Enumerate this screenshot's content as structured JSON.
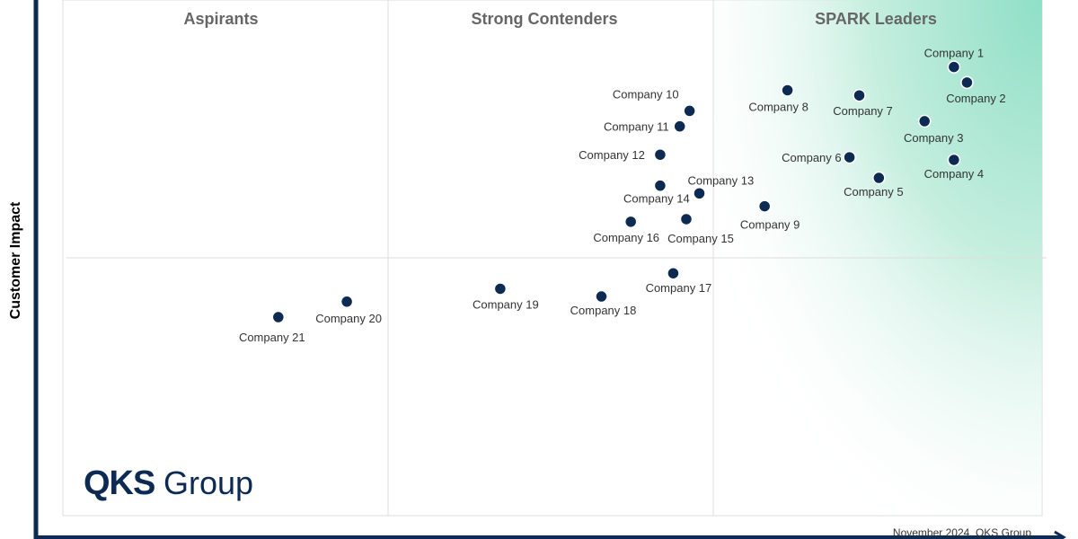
{
  "chart_data": {
    "type": "scatter",
    "ylabel": "Customer Impact",
    "xlabel": "",
    "xlim": [
      0,
      3
    ],
    "ylim": [
      0,
      2
    ],
    "quadrants": [
      "Aspirants",
      "Strong Contenders",
      "SPARK Leaders"
    ],
    "points": [
      {
        "label": "Company 1",
        "x": 2.73,
        "y": 1.74
      },
      {
        "label": "Company 2",
        "x": 2.77,
        "y": 1.68
      },
      {
        "label": "Company 3",
        "x": 2.64,
        "y": 1.53
      },
      {
        "label": "Company 4",
        "x": 2.73,
        "y": 1.38
      },
      {
        "label": "Company 5",
        "x": 2.5,
        "y": 1.31
      },
      {
        "label": "Company 6",
        "x": 2.41,
        "y": 1.39
      },
      {
        "label": "Company 7",
        "x": 2.44,
        "y": 1.63
      },
      {
        "label": "Company 8",
        "x": 2.22,
        "y": 1.65
      },
      {
        "label": "Company 9",
        "x": 2.15,
        "y": 1.2
      },
      {
        "label": "Company  10",
        "x": 1.92,
        "y": 1.57
      },
      {
        "label": "Company 11",
        "x": 1.89,
        "y": 1.51
      },
      {
        "label": "Company 12",
        "x": 1.83,
        "y": 1.4
      },
      {
        "label": "Company 13",
        "x": 1.95,
        "y": 1.25
      },
      {
        "label": "Company 14",
        "x": 1.83,
        "y": 1.28
      },
      {
        "label": "Company 15",
        "x": 1.91,
        "y": 1.15
      },
      {
        "label": "Company 16",
        "x": 1.74,
        "y": 1.14
      },
      {
        "label": "Company 17",
        "x": 1.87,
        "y": 0.94
      },
      {
        "label": "Company 18",
        "x": 1.65,
        "y": 0.85
      },
      {
        "label": "Company 19",
        "x": 1.34,
        "y": 0.88
      },
      {
        "label": "Company 20",
        "x": 0.87,
        "y": 0.83
      },
      {
        "label": "Company 21",
        "x": 0.66,
        "y": 0.77
      }
    ]
  },
  "footer": "November 2024, QKS Group",
  "logo": {
    "primary": "QKS",
    "secondary": "Group"
  },
  "colors": {
    "point": "#0d2a52",
    "leader_gradient": "#9fe3cf",
    "axis": "#0d2a52"
  }
}
